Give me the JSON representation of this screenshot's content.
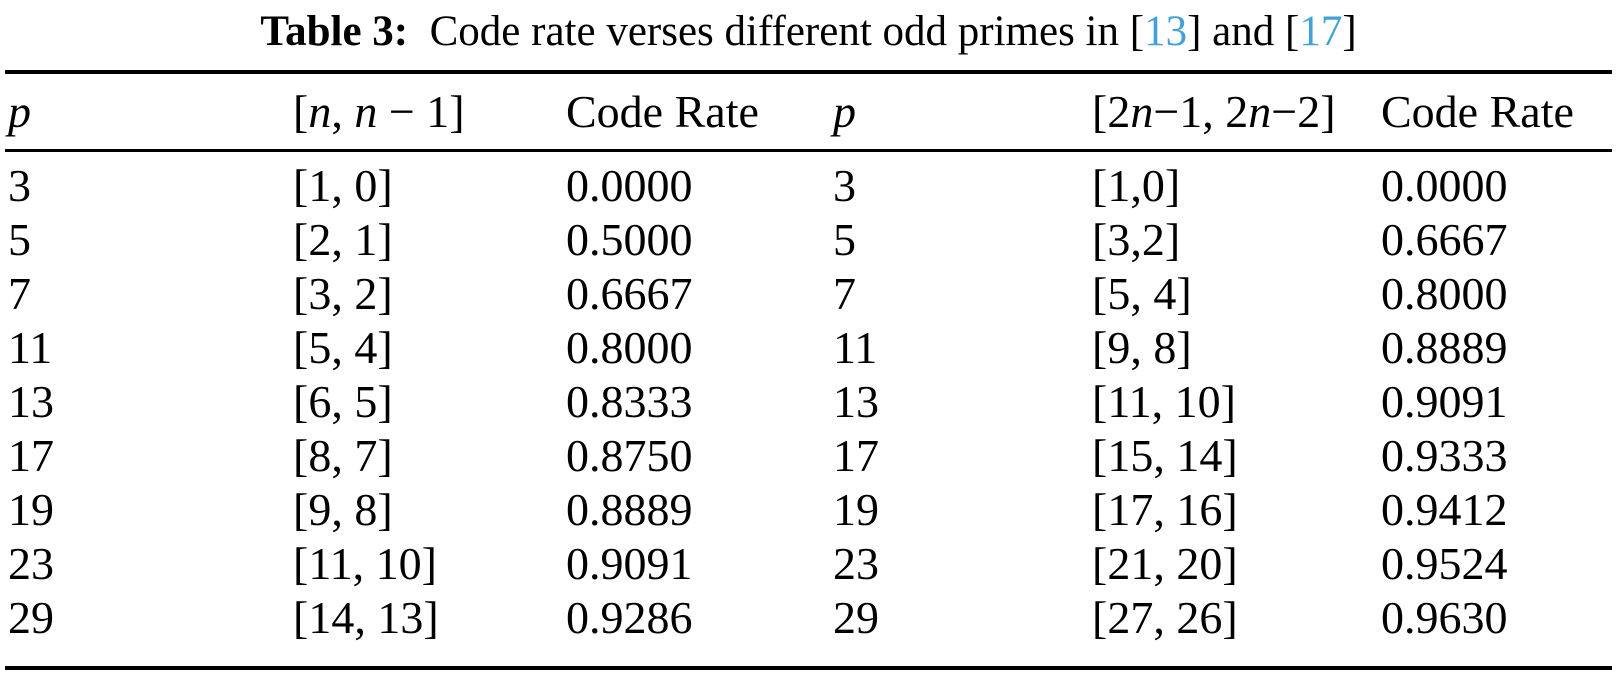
{
  "page": {
    "background": "#ffffff",
    "text_color": "#000000",
    "rule_color": "#000000"
  },
  "colors": {
    "citation_link": "#41a1d8"
  },
  "title": {
    "plain": "Table 3:  Code rate verses different odd primes in [13] and [17]",
    "parts": [
      {
        "text": "Table 3:",
        "bold": true
      },
      {
        "text": "  Code rate verses different odd primes in "
      },
      {
        "text": "["
      },
      {
        "text": "13",
        "link": true
      },
      {
        "text": "] and ["
      },
      {
        "text": "17",
        "link": true
      },
      {
        "text": "]"
      }
    ]
  },
  "table": {
    "headers": [
      {
        "name": "header-p-left",
        "parts": [
          {
            "text": "p",
            "italic": true
          }
        ]
      },
      {
        "name": "header-n-bracket-left",
        "parts": [
          {
            "text": "["
          },
          {
            "text": "n",
            "italic": true
          },
          {
            "text": ", "
          },
          {
            "text": "n",
            "italic": true
          },
          {
            "text": " − 1]"
          }
        ]
      },
      {
        "name": "header-code-rate-left",
        "parts": [
          {
            "text": "Code Rate"
          }
        ]
      },
      {
        "name": "header-p-right",
        "parts": [
          {
            "text": "p",
            "italic": true
          }
        ]
      },
      {
        "name": "header-n-bracket-right",
        "parts": [
          {
            "text": "[2"
          },
          {
            "text": "n",
            "italic": true
          },
          {
            "text": "−1, 2"
          },
          {
            "text": "n",
            "italic": true
          },
          {
            "text": "−2]"
          }
        ]
      },
      {
        "name": "header-code-rate-right",
        "parts": [
          {
            "text": "Code Rate"
          }
        ]
      }
    ],
    "rows": [
      [
        "3",
        "[1, 0]",
        "0.0000",
        "3",
        "[1,0]",
        "0.0000"
      ],
      [
        "5",
        "[2, 1]",
        "0.5000",
        "5",
        "[3,2]",
        "0.6667"
      ],
      [
        "7",
        "[3, 2]",
        "0.6667",
        "7",
        "[5, 4]",
        "0.8000"
      ],
      [
        "11",
        "[5, 4]",
        "0.8000",
        "11",
        "[9, 8]",
        "0.8889"
      ],
      [
        "13",
        "[6, 5]",
        "0.8333",
        "13",
        "[11, 10]",
        "0.9091"
      ],
      [
        "17",
        "[8, 7]",
        "0.8750",
        "17",
        "[15, 14]",
        "0.9333"
      ],
      [
        "19",
        "[9, 8]",
        "0.8889",
        "19",
        "[17, 16]",
        "0.9412"
      ],
      [
        "23",
        "[11, 10]",
        "0.9091",
        "23",
        "[21, 20]",
        "0.9524"
      ],
      [
        "29",
        "[14, 13]",
        "0.9286",
        "29",
        "[27, 26]",
        "0.9630"
      ]
    ],
    "cell_names": [
      "cell-p",
      "cell-code-params",
      "cell-code-rate",
      "cell-p",
      "cell-code-params",
      "cell-code-rate"
    ]
  }
}
